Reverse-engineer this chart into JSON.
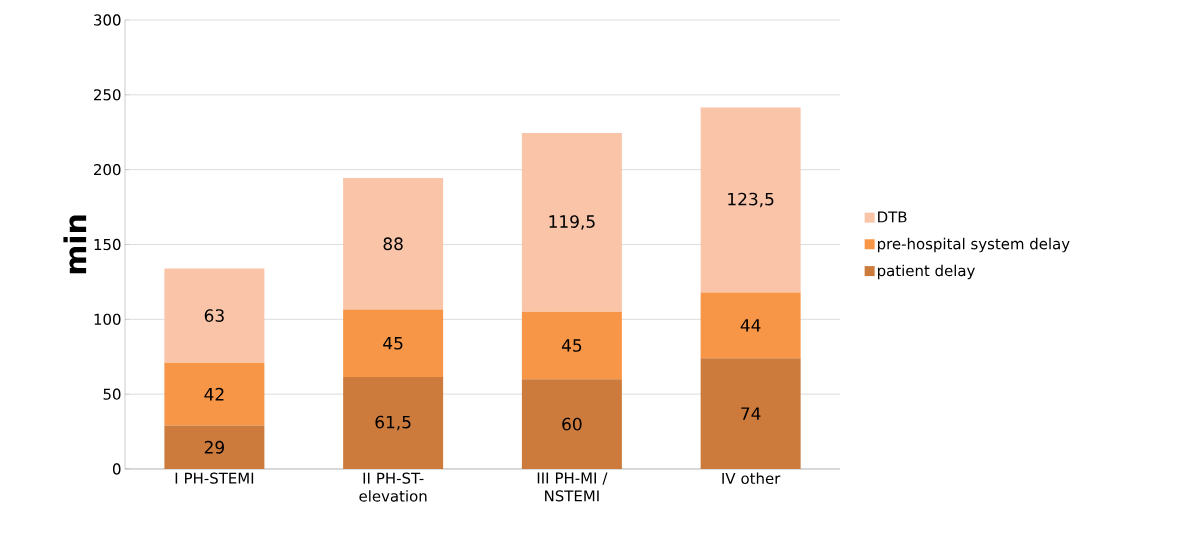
{
  "chart_data": {
    "type": "bar",
    "stacked": true,
    "categories": [
      "I PH-STEMI",
      "II PH-ST-elevation",
      "III PH-MI / NSTEMI",
      "IV other"
    ],
    "ylabel": "min",
    "ylim": [
      0,
      300
    ],
    "yticks": [
      0,
      50,
      100,
      150,
      200,
      250,
      300
    ],
    "grid": "y",
    "legend": "right",
    "series": [
      {
        "name": "patient delay",
        "color": "#cd7b3d",
        "values": [
          29,
          61.5,
          60,
          74
        ],
        "value_labels": [
          "29",
          "61,5",
          "60",
          "74"
        ]
      },
      {
        "name": "pre-hospital system delay",
        "color": "#f79646",
        "values": [
          42,
          45,
          45,
          44
        ],
        "value_labels": [
          "42",
          "45",
          "45",
          "44"
        ]
      },
      {
        "name": "DTB",
        "color": "#f9c4a8",
        "values": [
          63,
          88,
          119.5,
          123.5
        ],
        "value_labels": [
          "63",
          "88",
          "119,5",
          "123,5"
        ]
      }
    ]
  }
}
